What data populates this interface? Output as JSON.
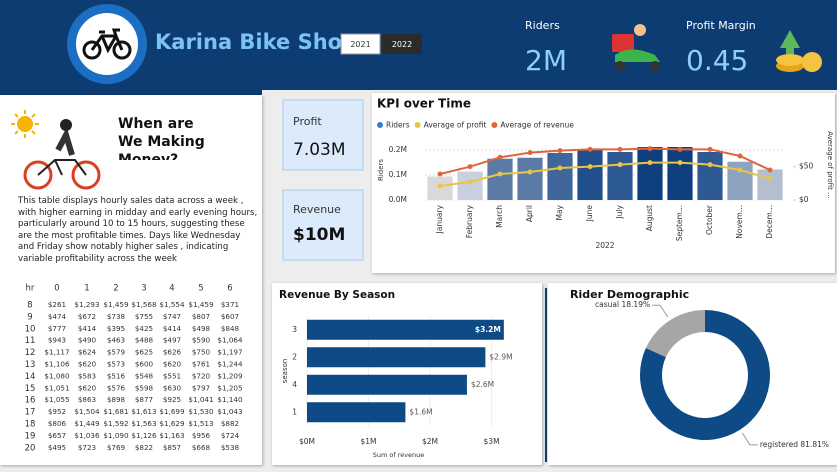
{
  "header": {
    "title": "Karina Bike Shop",
    "years": [
      "2021",
      "2022"
    ],
    "kpis": [
      {
        "label": "Riders",
        "value": "2M"
      },
      {
        "label": "Profit Margin",
        "value": "0.45"
      }
    ]
  },
  "cards": [
    {
      "label": "Profit",
      "value": "7.03M"
    },
    {
      "label": "Revenue",
      "value": "$10M"
    }
  ],
  "narrative": {
    "title": "When are We Making Money?",
    "text": "This table displays hourly sales data across a week , with higher earning in midday and early evening hours, particularly around 10 to 15 hours, suggesting these are the most profitable times. Days like Wednesday and Friday show notably higher sales , indicating variable profitability across the week"
  },
  "table": {
    "columns": [
      "hr",
      "0",
      "1",
      "2",
      "3",
      "4",
      "5",
      "6"
    ],
    "rows": [
      [
        "8",
        "$261",
        "$1,293",
        "$1,459",
        "$1,568",
        "$1,554",
        "$1,459",
        "$371"
      ],
      [
        "9",
        "$474",
        "$672",
        "$738",
        "$755",
        "$747",
        "$807",
        "$607"
      ],
      [
        "10",
        "$777",
        "$414",
        "$395",
        "$425",
        "$414",
        "$498",
        "$848"
      ],
      [
        "11",
        "$943",
        "$490",
        "$463",
        "$488",
        "$497",
        "$590",
        "$1,064"
      ],
      [
        "12",
        "$1,117",
        "$624",
        "$579",
        "$625",
        "$626",
        "$750",
        "$1,197"
      ],
      [
        "13",
        "$1,106",
        "$620",
        "$573",
        "$600",
        "$620",
        "$761",
        "$1,244"
      ],
      [
        "14",
        "$1,080",
        "$583",
        "$516",
        "$548",
        "$551",
        "$720",
        "$1,209"
      ],
      [
        "15",
        "$1,051",
        "$620",
        "$576",
        "$598",
        "$630",
        "$797",
        "$1,205"
      ],
      [
        "16",
        "$1,055",
        "$863",
        "$898",
        "$877",
        "$925",
        "$1,041",
        "$1,140"
      ],
      [
        "17",
        "$952",
        "$1,504",
        "$1,681",
        "$1,613",
        "$1,699",
        "$1,530",
        "$1,043"
      ],
      [
        "18",
        "$806",
        "$1,449",
        "$1,592",
        "$1,563",
        "$1,629",
        "$1,513",
        "$882"
      ],
      [
        "19",
        "$657",
        "$1,036",
        "$1,090",
        "$1,126",
        "$1,163",
        "$956",
        "$724"
      ],
      [
        "20",
        "$495",
        "$723",
        "$769",
        "$822",
        "$857",
        "$668",
        "$538"
      ]
    ]
  },
  "chart_data": [
    {
      "type": "combo",
      "title": "KPI over Time",
      "xlabel": "2022",
      "ylabel": "Riders",
      "y2label": "Average of profit ...",
      "categories": [
        "January",
        "February",
        "March",
        "April",
        "May",
        "June",
        "July",
        "August",
        "Septem...",
        "October",
        "Novem...",
        "Decem..."
      ],
      "series": [
        {
          "name": "Riders",
          "color": "#2f80d8",
          "kind": "bar",
          "values": [
            94000,
            114000,
            165000,
            169000,
            188000,
            200000,
            192000,
            212000,
            212000,
            192000,
            153000,
            122000
          ],
          "colors": [
            "#d9d9d9",
            "#c7d0dc",
            "#5b7ba6",
            "#5b7ba6",
            "#3f679c",
            "#214f8c",
            "#2d5a94",
            "#0f3f7f",
            "#0f3f7f",
            "#2d5a94",
            "#8ea3c0",
            "#b3bfd0"
          ]
        },
        {
          "name": "Average of profit",
          "color": "#e8c547",
          "kind": "line",
          "axis": "y2",
          "values": [
            21,
            27,
            39,
            42,
            48,
            50,
            53,
            56,
            56,
            53,
            45,
            32
          ]
        },
        {
          "name": "Average of revenue",
          "color": "#e0663a",
          "kind": "line",
          "axis": "y2",
          "values": [
            39,
            50,
            64,
            71,
            74,
            76,
            76,
            77,
            76,
            76,
            66,
            45
          ]
        }
      ],
      "ylim": [
        0,
        240000
      ],
      "yticks": [
        {
          "value": 0,
          "label": "0.0M"
        },
        {
          "value": 100000,
          "label": "0.1M"
        },
        {
          "value": 200000,
          "label": "0.2M"
        }
      ],
      "y2lim": [
        0,
        90
      ],
      "y2ticks": [
        {
          "value": 0,
          "label": "$0"
        },
        {
          "value": 50,
          "label": "$50"
        }
      ],
      "grid": true
    },
    {
      "type": "hbar",
      "title": "Revenue By Season",
      "xlabel": "Sum of revenue",
      "ylabel": "season",
      "categories": [
        "3",
        "2",
        "4",
        "1"
      ],
      "values": [
        3200000,
        2900000,
        2600000,
        1600000
      ],
      "value_labels": [
        "$3.2M",
        "$2.9M",
        "$2.6M",
        "$1.6M"
      ],
      "color": "#0d4a86",
      "xlim": [
        0,
        3300000
      ],
      "xticks": [
        {
          "value": 0,
          "label": "$0M"
        },
        {
          "value": 1000000,
          "label": "$1M"
        },
        {
          "value": 2000000,
          "label": "$2M"
        },
        {
          "value": 3000000,
          "label": "$3M"
        }
      ]
    },
    {
      "type": "donut",
      "title": "Rider Demographic",
      "categories": [
        "registered",
        "casual"
      ],
      "values": [
        81.81,
        18.19
      ],
      "value_labels": [
        "registered 81.81%",
        "casual 18.19%"
      ],
      "colors": [
        "#0d4a86",
        "#a6a6a6"
      ]
    }
  ]
}
